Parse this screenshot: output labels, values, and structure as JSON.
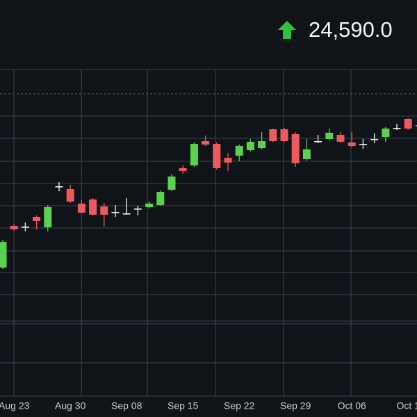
{
  "chart_data": {
    "type": "candlestick",
    "last_price_label": "24,590.0",
    "categories": [
      null,
      "Aug 23",
      null,
      null,
      null,
      null,
      "Aug 30",
      null,
      null,
      null,
      null,
      "Sep 08",
      null,
      null,
      null,
      null,
      "Sep 15",
      null,
      null,
      null,
      null,
      "Sep 22",
      null,
      null,
      null,
      null,
      "Sep 29",
      null,
      null,
      null,
      null,
      "Oct 06",
      null,
      null,
      null,
      null,
      "Oct 1",
      null
    ],
    "series": [
      {
        "open": [
          23575,
          23875,
          23870,
          23940,
          23865,
          24160,
          24140,
          24035,
          24065,
          24015,
          23975,
          23965,
          24000,
          24010,
          24025,
          24135,
          24290,
          24310,
          24485,
          24465,
          24365,
          24380,
          24420,
          24435,
          24570,
          24570,
          24535,
          24355,
          24485,
          24500,
          24530,
          24475,
          24465,
          24500,
          24515,
          24580,
          24645,
          24600
        ],
        "high": [
          23775,
          23890,
          23900,
          23950,
          24025,
          24190,
          24170,
          24060,
          24075,
          24040,
          24025,
          24075,
          24020,
          24050,
          24130,
          24250,
          24310,
          24475,
          24525,
          24475,
          24400,
          24460,
          24500,
          24550,
          24575,
          24580,
          24550,
          24500,
          24530,
          24575,
          24550,
          24550,
          24500,
          24540,
          24585,
          24610,
          24650,
          24610
        ],
        "low": [
          23565,
          23840,
          23835,
          23850,
          23835,
          24125,
          24040,
          23965,
          23950,
          23870,
          23940,
          23955,
          23950,
          24000,
          24020,
          24125,
          24250,
          24300,
          24450,
          24280,
          24270,
          24340,
          24410,
          24425,
          24475,
          24480,
          24300,
          24345,
          24470,
          24490,
          24470,
          24440,
          24430,
          24470,
          24480,
          24565,
          24565,
          24585
        ],
        "close": [
          23760,
          23850,
          23870,
          23910,
          24010,
          24160,
          24050,
          23970,
          23955,
          23955,
          23975,
          23965,
          24000,
          24035,
          24120,
          24230,
          24270,
          24465,
          24460,
          24290,
          24330,
          24450,
          24480,
          24485,
          24485,
          24485,
          24325,
          24425,
          24485,
          24545,
          24480,
          24450,
          24465,
          24500,
          24575,
          24580,
          24575,
          24590
        ]
      }
    ],
    "up_color": "#5bd24f",
    "down_color": "#ec5a5d",
    "doji_color": "#f2f2f2",
    "ylim": [
      23175,
      25000
    ]
  }
}
